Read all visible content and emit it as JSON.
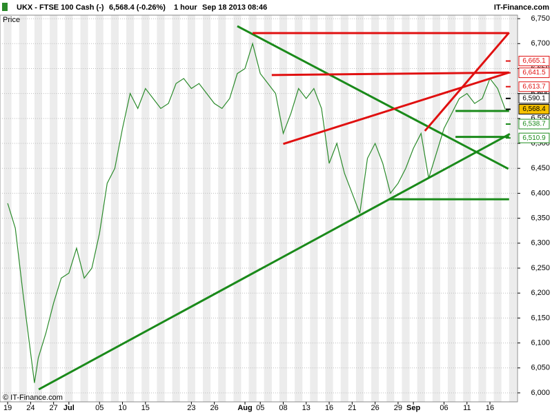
{
  "header": {
    "title": "UKX - FTSE 100 Cash (-)",
    "quote": "6,568.4 (-0.26%)",
    "period": "1 hour",
    "timestamp": "Sep 18 2013 08:46",
    "brand": "IT-Finance.com"
  },
  "chart_data": {
    "type": "line",
    "y_label": "Price",
    "credit": "© IT-Finance.com",
    "x": [
      0,
      1,
      2,
      3,
      3.5,
      4,
      5,
      6,
      7,
      8,
      9,
      10,
      11,
      12,
      13,
      14,
      15,
      16,
      17,
      18,
      19,
      20,
      21,
      22,
      23,
      24,
      25,
      26,
      27,
      28,
      29,
      30,
      31,
      32,
      33,
      34,
      35,
      36,
      37,
      38,
      39,
      40,
      41,
      42,
      43,
      44,
      45,
      46,
      47,
      48,
      49,
      50,
      51,
      52,
      53,
      54,
      55,
      56,
      57,
      58,
      59,
      60,
      61,
      62,
      63,
      64,
      65
    ],
    "values": [
      6380,
      6330,
      6200,
      6080,
      6020,
      6070,
      6120,
      6180,
      6230,
      6240,
      6290,
      6230,
      6250,
      6320,
      6420,
      6450,
      6530,
      6600,
      6570,
      6610,
      6590,
      6570,
      6580,
      6620,
      6630,
      6610,
      6620,
      6600,
      6580,
      6570,
      6590,
      6640,
      6650,
      6700,
      6640,
      6620,
      6600,
      6520,
      6560,
      6610,
      6590,
      6610,
      6570,
      6460,
      6500,
      6440,
      6400,
      6360,
      6470,
      6500,
      6460,
      6400,
      6420,
      6450,
      6490,
      6520,
      6430,
      6480,
      6530,
      6560,
      6590,
      6600,
      6580,
      6590,
      6630,
      6610,
      6568.4
    ],
    "color": "#2a8a2a",
    "trendlines": [
      {
        "color": "#1a8a1a",
        "x": [
          4.06,
          65.6
        ],
        "values": [
          6007,
          6519
        ]
      },
      {
        "color": "#1a8a1a",
        "x": [
          30,
          65.4
        ],
        "values": [
          6735,
          6449
        ]
      },
      {
        "color": "#1a8a1a",
        "x": [
          49.8,
          65.5
        ],
        "values": [
          6388,
          6388
        ]
      },
      {
        "color": "#1a8a1a",
        "x": [
          58.5,
          65.5
        ],
        "values": [
          6565,
          6565
        ]
      },
      {
        "color": "#1a8a1a",
        "x": [
          58.5,
          65.5
        ],
        "values": [
          6513,
          6513
        ]
      },
      {
        "color": "#e01010",
        "x": [
          32,
          65.5
        ],
        "values": [
          6721,
          6721
        ]
      },
      {
        "color": "#e01010",
        "x": [
          34.5,
          65.5
        ],
        "values": [
          6637,
          6642
        ]
      },
      {
        "color": "#e01010",
        "x": [
          36,
          65.5
        ],
        "values": [
          6499,
          6642
        ]
      },
      {
        "color": "#e01010",
        "x": [
          54.5,
          65.5
        ],
        "values": [
          6525,
          6722
        ]
      }
    ],
    "levels": [
      {
        "value": 6665.1,
        "label": "6,665.1",
        "color": "#e01010"
      },
      {
        "value": 6641.5,
        "label": "6,641.5",
        "color": "#e01010"
      },
      {
        "value": 6613.7,
        "label": "6,613.7",
        "color": "#e01010"
      },
      {
        "value": 6590.1,
        "label": "6,590.1",
        "color": "#000000"
      },
      {
        "value": 6568.4,
        "label": "6,568.4",
        "color": "#000000"
      },
      {
        "value": 6538.7,
        "label": "6,538.7",
        "color": "#1a8a1a"
      },
      {
        "value": 6510.9,
        "label": "6,510.9",
        "color": "#1a8a1a"
      }
    ],
    "xlim": [
      -1,
      66.6
    ],
    "ylim": [
      5982,
      6757
    ],
    "xticks": [
      {
        "value": 0,
        "label": "19"
      },
      {
        "value": 3,
        "label": "24"
      },
      {
        "value": 6,
        "label": "27"
      },
      {
        "value": 8,
        "label": "Jul"
      },
      {
        "value": 12,
        "label": "05"
      },
      {
        "value": 15,
        "label": "10"
      },
      {
        "value": 18,
        "label": "15"
      },
      {
        "value": 24,
        "label": "23"
      },
      {
        "value": 27,
        "label": "26"
      },
      {
        "value": 31,
        "label": "Aug"
      },
      {
        "value": 33,
        "label": "05"
      },
      {
        "value": 36,
        "label": "08"
      },
      {
        "value": 39,
        "label": "13"
      },
      {
        "value": 42,
        "label": "16"
      },
      {
        "value": 45,
        "label": "21"
      },
      {
        "value": 48,
        "label": "26"
      },
      {
        "value": 51,
        "label": "29"
      },
      {
        "value": 53,
        "label": "Sep"
      },
      {
        "value": 57,
        "label": "06"
      },
      {
        "value": 60,
        "label": "11"
      },
      {
        "value": 63,
        "label": "16"
      }
    ],
    "yticks": [
      {
        "value": 6000,
        "label": "6,000"
      },
      {
        "value": 6050,
        "label": "6,050"
      },
      {
        "value": 6100,
        "label": "6,100"
      },
      {
        "value": 6150,
        "label": "6,150"
      },
      {
        "value": 6200,
        "label": "6,200"
      },
      {
        "value": 6250,
        "label": "6,250"
      },
      {
        "value": 6300,
        "label": "6,300"
      },
      {
        "value": 6350,
        "label": "6,350"
      },
      {
        "value": 6400,
        "label": "6,400"
      },
      {
        "value": 6450,
        "label": "6,450"
      },
      {
        "value": 6500,
        "label": "6,500"
      },
      {
        "value": 6550,
        "label": "6,550"
      },
      {
        "value": 6600,
        "label": "6,600"
      },
      {
        "value": 6650,
        "label": "6,650"
      },
      {
        "value": 6700,
        "label": "6,700"
      },
      {
        "value": 6750,
        "label": "6,750"
      }
    ],
    "grid": true
  }
}
